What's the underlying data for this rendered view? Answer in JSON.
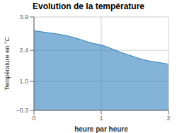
{
  "chart_data": {
    "type": "area",
    "title": "Evolution de la température",
    "xlabel": "heure par heure",
    "ylabel": "Température en °C",
    "x": [
      0.0,
      0.1,
      0.2,
      0.3,
      0.4,
      0.5,
      0.6,
      0.7,
      0.8,
      0.9,
      1.0,
      1.1,
      1.2,
      1.3,
      1.4,
      1.5,
      1.6,
      1.7,
      1.8,
      1.9,
      2.0
    ],
    "values": [
      3.28,
      3.24,
      3.2,
      3.16,
      3.11,
      3.05,
      2.97,
      2.88,
      2.78,
      2.7,
      2.65,
      2.54,
      2.42,
      2.3,
      2.2,
      2.1,
      2.0,
      1.93,
      1.88,
      1.83,
      1.78
    ],
    "xlim": [
      0,
      2
    ],
    "ylim": [
      -0.3,
      3.9
    ],
    "xticks": [
      0,
      1,
      2
    ],
    "yticks": [
      {
        "value": -0.3,
        "label": "−0.3"
      },
      {
        "value": 1.0,
        "label": "1.0"
      },
      2.4,
      3.9
    ],
    "grid": true
  }
}
